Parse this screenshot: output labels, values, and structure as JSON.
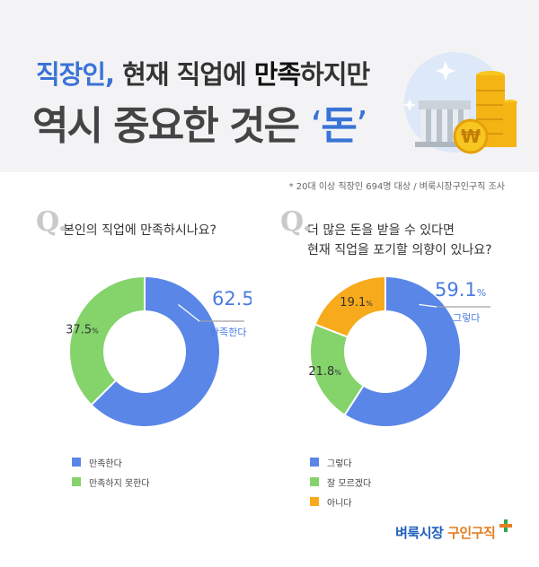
{
  "header": {
    "title_line1": [
      {
        "text": "직장인,",
        "color": "#3a73d6"
      },
      {
        "text": " 현재 직업에 ",
        "color": "#333333"
      },
      {
        "text": "만족",
        "color": "#111111"
      },
      {
        "text": "하지만",
        "color": "#333333"
      }
    ],
    "title_line2_prefix": "역시 중요한 것은 ",
    "title_line2_quote_open": "‘",
    "title_line2_highlight": "돈",
    "title_line2_quote_close": "’",
    "highlight_color": "#3a73d6",
    "coin_symbol": "₩"
  },
  "survey_note": "* 20대 이상 직장인 694명 대상 / 벼룩시장구인구직 조사",
  "questions": [
    {
      "mark": "Q.",
      "lines": [
        "본인의 직업에 만족하시나요?"
      ]
    },
    {
      "mark": "Q.",
      "lines": [
        "더 많은 돈을 받을 수 있다면",
        "현재 직업을 포기할 의향이 있나요?"
      ]
    }
  ],
  "chart_data": [
    {
      "type": "pie",
      "variant": "donut",
      "slices": [
        {
          "label": "만족한다",
          "value": 62.5,
          "color": "#5a86e8"
        },
        {
          "label": "만족하지 못한다",
          "value": 37.5,
          "color": "#84d36b"
        }
      ],
      "unit": "%",
      "callout": {
        "value": "62.5",
        "unit": "%",
        "label": "만족한다"
      }
    },
    {
      "type": "pie",
      "variant": "donut",
      "slices": [
        {
          "label": "그렇다",
          "value": 59.1,
          "color": "#5a86e8"
        },
        {
          "label": "잘 모르겠다",
          "value": 21.8,
          "color": "#84d36b"
        },
        {
          "label": "아니다",
          "value": 19.1,
          "color": "#f7aa1b"
        }
      ],
      "unit": "%",
      "callout": {
        "value": "59.1",
        "unit": "%",
        "label": "그렇다"
      }
    }
  ],
  "brand": {
    "part1": "벼룩시장",
    "part2": "구인구직",
    "color1": "#1f5fbf",
    "color2": "#e67e22"
  }
}
